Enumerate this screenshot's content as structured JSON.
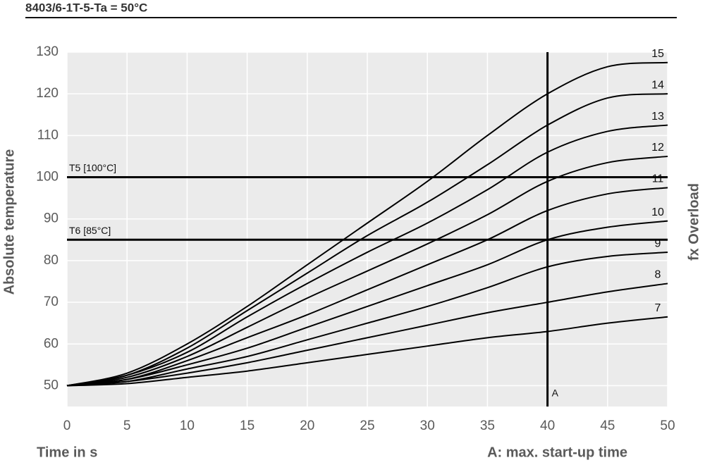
{
  "chart_data": {
    "type": "line",
    "title": "8403/6-1T-5-Ta = 50°C",
    "x_label": "Time in s",
    "y_label": "Absolute temperature",
    "y2_label": "fx Overload",
    "annotation": "A: max. start-up time",
    "x": [
      0,
      5,
      10,
      15,
      20,
      25,
      30,
      35,
      40,
      45,
      50
    ],
    "series": [
      {
        "name": "7",
        "color": "#000000",
        "values": [
          50,
          50.5,
          52,
          53.5,
          55.5,
          57.5,
          59.5,
          61.5,
          63,
          65,
          66.5
        ]
      },
      {
        "name": "8",
        "color": "#000000",
        "values": [
          50,
          51,
          53,
          55.5,
          58.5,
          61.5,
          64.5,
          67.5,
          70,
          72.5,
          74.5
        ]
      },
      {
        "name": "9",
        "color": "#000000",
        "values": [
          50,
          51,
          54,
          57,
          61,
          65,
          69,
          73.5,
          78.5,
          81,
          82
        ]
      },
      {
        "name": "10",
        "color": "#000000",
        "values": [
          50,
          51.5,
          55,
          59,
          64,
          69,
          74,
          79,
          85,
          88,
          89.5
        ]
      },
      {
        "name": "11",
        "color": "#000000",
        "values": [
          50,
          51.5,
          56,
          61.5,
          67,
          73,
          79,
          85,
          92,
          96,
          97.5
        ]
      },
      {
        "name": "12",
        "color": "#000000",
        "values": [
          50,
          52,
          57,
          64,
          71,
          77.5,
          84,
          91,
          99,
          103.5,
          105
        ]
      },
      {
        "name": "13",
        "color": "#000000",
        "values": [
          50,
          52.5,
          58,
          66.5,
          74.5,
          82,
          89,
          97,
          106,
          111,
          112.5
        ]
      },
      {
        "name": "14",
        "color": "#000000",
        "values": [
          50,
          52.5,
          59,
          68,
          77,
          86,
          94,
          103,
          112.5,
          119,
          120
        ]
      },
      {
        "name": "15",
        "color": "#000000",
        "values": [
          50,
          53,
          60,
          69,
          79,
          89,
          99,
          110,
          120,
          126.5,
          127.5
        ]
      }
    ],
    "reference_lines": [
      {
        "value": 100,
        "label": "T5 [100°C]"
      },
      {
        "value": 85,
        "label": "T6 [85°C]"
      }
    ],
    "vertical_line": {
      "value": 40,
      "label": "A"
    },
    "xlim": [
      0,
      50
    ],
    "xticks": [
      0,
      5,
      10,
      15,
      20,
      25,
      30,
      35,
      40,
      45,
      50
    ],
    "ylim": [
      45,
      130
    ],
    "yticks": [
      50,
      60,
      70,
      80,
      90,
      100,
      110,
      120,
      130
    ],
    "grid": true
  }
}
